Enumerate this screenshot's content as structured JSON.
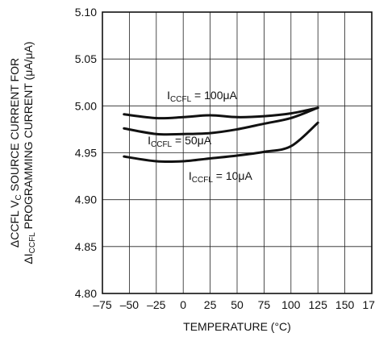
{
  "chart_data": {
    "type": "line",
    "xlabel": "TEMPERATURE (°C)",
    "ylabel": {
      "line1_prefix": "ΔCCFL V",
      "line1_sub": "C",
      "line1_suffix": " SOURCE CURRENT FOR",
      "line2_prefix": "ΔI",
      "line2_sub": "CCFL",
      "line2_suffix": " PROGRAMMING CURRENT (μA/μA)"
    },
    "xlim": [
      -75,
      175
    ],
    "ylim": [
      4.8,
      5.1
    ],
    "x_ticks": [
      "–75",
      "–50",
      "–25",
      "0",
      "25",
      "50",
      "75",
      "100",
      "125",
      "150",
      "175"
    ],
    "y_ticks": [
      "4.80",
      "4.85",
      "4.90",
      "4.95",
      "5.00",
      "5.05",
      "5.10"
    ],
    "grid": true,
    "series": [
      {
        "name": "I CCFL = 100μA",
        "label_prefix": "I",
        "label_sub": "CCFL",
        "label_suffix": " = 100μA",
        "x": [
          -55,
          -25,
          0,
          25,
          50,
          75,
          100,
          125
        ],
        "y": [
          4.991,
          4.987,
          4.988,
          4.99,
          4.988,
          4.989,
          4.992,
          4.998
        ]
      },
      {
        "name": "I CCFL = 50μA",
        "label_prefix": "I",
        "label_sub": "CCFL",
        "label_suffix": " = 50μA",
        "x": [
          -55,
          -25,
          0,
          25,
          50,
          75,
          100,
          125
        ],
        "y": [
          4.976,
          4.97,
          4.97,
          4.971,
          4.975,
          4.981,
          4.987,
          4.998
        ]
      },
      {
        "name": "I CCFL = 10μA",
        "label_prefix": "I",
        "label_sub": "CCFL",
        "label_suffix": " = 10μA",
        "x": [
          -55,
          -25,
          0,
          25,
          50,
          75,
          100,
          125
        ],
        "y": [
          4.946,
          4.941,
          4.941,
          4.944,
          4.947,
          4.951,
          4.957,
          4.982
        ]
      }
    ]
  }
}
